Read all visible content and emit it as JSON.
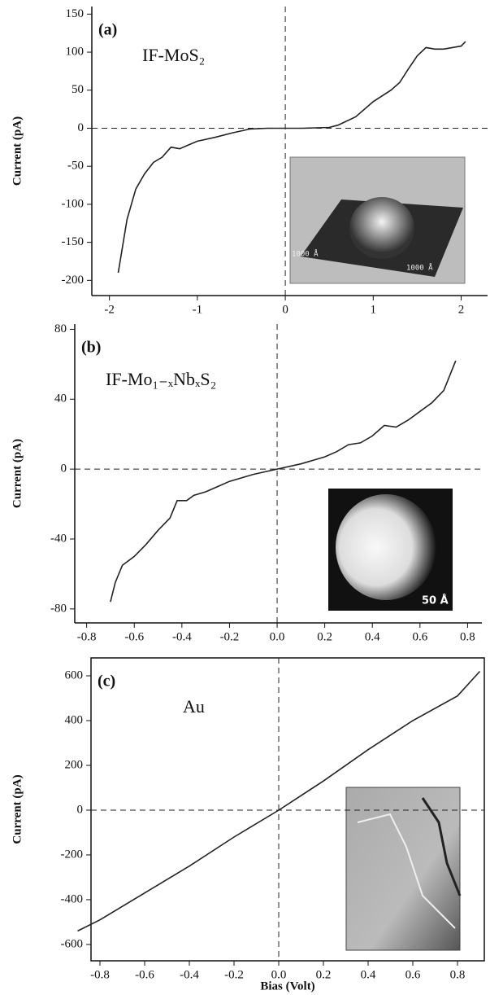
{
  "chart_data": [
    {
      "type": "line",
      "panel_label": "(a)",
      "annotation": "IF-MoS₂",
      "y_label": "Current (pA)",
      "inset_labels": [
        "1000 Å",
        "1000 Å"
      ],
      "xlim": [
        -2.2,
        2.3
      ],
      "xticks": [
        -2,
        -1,
        0,
        1,
        2
      ],
      "ylim": [
        -220,
        160
      ],
      "yticks": [
        -200,
        -150,
        -100,
        -50,
        0,
        50,
        100,
        150
      ],
      "color": "#222",
      "x": [
        -1.9,
        -1.8,
        -1.7,
        -1.6,
        -1.5,
        -1.4,
        -1.3,
        -1.2,
        -1.1,
        -1.0,
        -0.8,
        -0.6,
        -0.4,
        -0.2,
        0,
        0.2,
        0.5,
        0.6,
        0.8,
        1.0,
        1.2,
        1.3,
        1.4,
        1.5,
        1.6,
        1.7,
        1.8,
        1.9,
        2.0,
        2.05
      ],
      "values": [
        -190,
        -120,
        -80,
        -60,
        -45,
        -38,
        -25,
        -27,
        -22,
        -17,
        -12,
        -6,
        -1,
        0,
        0,
        0,
        1,
        4,
        15,
        35,
        50,
        60,
        78,
        95,
        106,
        104,
        104,
        106,
        108,
        114
      ]
    },
    {
      "type": "line",
      "panel_label": "(b)",
      "annotation": "IF-Mo₁₋ₓNbₓS₂",
      "y_label": "Current (pA)",
      "inset_labels": [
        "50 Å"
      ],
      "xlim": [
        -0.85,
        0.86
      ],
      "xticks": [
        -0.8,
        -0.6,
        -0.4,
        -0.2,
        {
          "value": 0,
          "label": "0.0"
        },
        0.2,
        0.4,
        0.6,
        0.8
      ],
      "ylim": [
        -88,
        83
      ],
      "yticks": [
        -80,
        -40,
        0,
        40,
        80
      ],
      "color": "#222",
      "x": [
        -0.7,
        -0.68,
        -0.65,
        -0.6,
        -0.55,
        -0.5,
        -0.45,
        -0.42,
        -0.38,
        -0.35,
        -0.3,
        -0.25,
        -0.2,
        -0.1,
        0,
        0.1,
        0.2,
        0.25,
        0.3,
        0.35,
        0.4,
        0.45,
        0.5,
        0.55,
        0.6,
        0.65,
        0.7,
        0.75
      ],
      "values": [
        -76,
        -65,
        -55,
        -50,
        -43,
        -35,
        -28,
        -18,
        -18,
        -15,
        -13,
        -10,
        -7,
        -3,
        0,
        3,
        7,
        10,
        14,
        15,
        19,
        25,
        24,
        28,
        33,
        38,
        45,
        62
      ]
    },
    {
      "type": "line",
      "panel_label": "(c)",
      "annotation": "Au",
      "y_label": "Current (pA)",
      "x_label": "Bias (Volt)",
      "xlim": [
        -0.84,
        0.92
      ],
      "xticks": [
        -0.8,
        -0.6,
        -0.4,
        -0.2,
        {
          "value": 0,
          "label": "0.0"
        },
        0.2,
        0.4,
        0.6,
        0.8
      ],
      "ylim": [
        -673,
        680
      ],
      "yticks": [
        -600,
        -400,
        -200,
        0,
        200,
        400,
        600
      ],
      "color": "#222",
      "x": [
        -0.9,
        -0.8,
        -0.6,
        -0.4,
        -0.2,
        0,
        0.2,
        0.4,
        0.6,
        0.8,
        0.9
      ],
      "values": [
        -540,
        -490,
        -370,
        -250,
        -120,
        0,
        130,
        270,
        400,
        510,
        620
      ]
    }
  ]
}
